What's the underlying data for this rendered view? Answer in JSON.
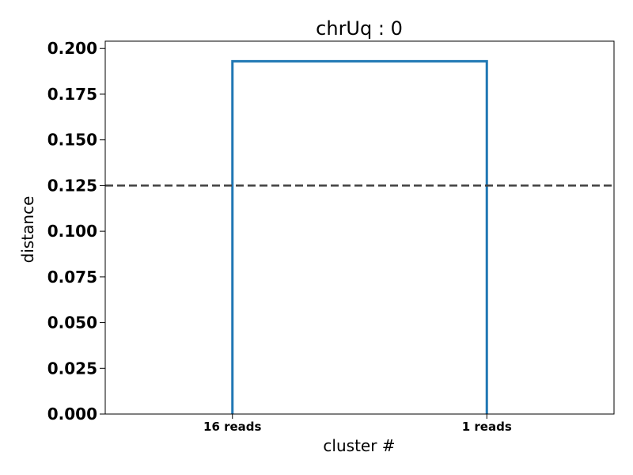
{
  "chart_data": {
    "type": "dendrogram",
    "title": "chrUq : 0",
    "xlabel": "cluster #",
    "ylabel": "distance",
    "ylim": [
      0,
      0.204
    ],
    "yticks": [
      "0.000",
      "0.025",
      "0.050",
      "0.075",
      "0.100",
      "0.125",
      "0.150",
      "0.175",
      "0.200"
    ],
    "leaves": [
      "16 reads",
      "1 reads"
    ],
    "merges": [
      {
        "left": "16 reads",
        "right": "1 reads",
        "height": 0.193
      }
    ],
    "threshold": 0.125,
    "grid": false,
    "colors": {
      "link": "#1f77b4",
      "threshold": "#404040"
    }
  }
}
